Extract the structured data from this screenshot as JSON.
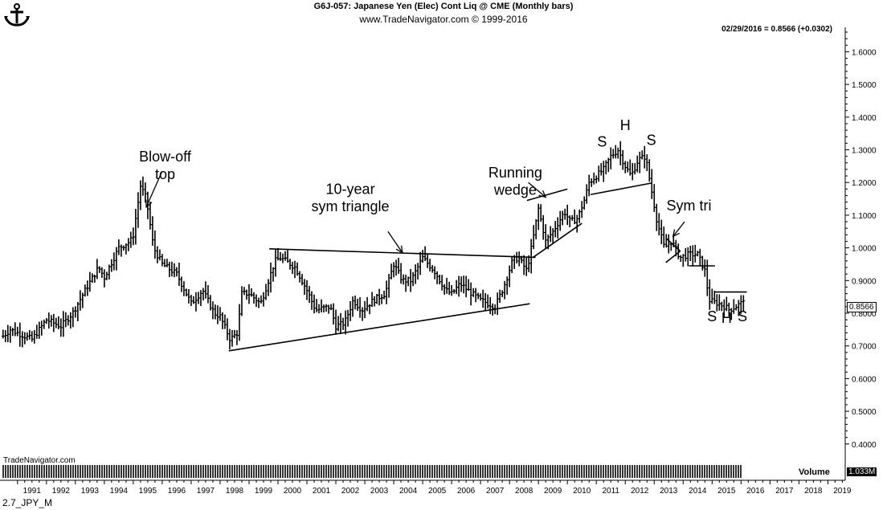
{
  "header": {
    "title": "G6J-057:  Japanese Yen (Elec) Cont Liq @ CME  (Monthly bars)",
    "subtitle": "www.TradeNavigator.com © 1999-2016",
    "last_quote": "02/29/2016 = 0.8566 (+0.0302)"
  },
  "footer": {
    "source": "TradeNavigator.com",
    "bottom_label": "2.7_JPY_M",
    "volume_label": "Volume",
    "volume_value": "1.033M",
    "last_price": "0.8566"
  },
  "logo_icon": "anchor-icon",
  "colors": {
    "bars": "#000000",
    "background": "#ffffff",
    "volume": "#000000"
  },
  "chart_data": {
    "type": "ohlc-bar",
    "title": "G6J-057:  Japanese Yen (Elec) Cont Liq @ CME  (Monthly bars)",
    "x_tick_labels": [
      "1991",
      "1992",
      "1993",
      "1994",
      "1995",
      "1996",
      "1997",
      "1998",
      "1999",
      "2000",
      "2001",
      "2002",
      "2003",
      "2004",
      "2005",
      "2006",
      "2007",
      "2008",
      "2009",
      "2010",
      "2011",
      "2012",
      "2013",
      "2014",
      "2015",
      "2016",
      "2017",
      "2018",
      "2019"
    ],
    "y_tick_labels": [
      "0.4000",
      "0.5000",
      "0.6000",
      "0.7000",
      "0.8000",
      "0.9000",
      "1.0000",
      "1.1000",
      "1.2000",
      "1.3000",
      "1.4000",
      "1.5000",
      "1.6000"
    ],
    "ylim": [
      0.37,
      1.66
    ],
    "xlim": [
      1990.45,
      2019.6
    ],
    "grid": false,
    "price_series": {
      "name": "",
      "anchors": [
        [
          1990.5,
          0.73
        ],
        [
          1990.75,
          0.75
        ],
        [
          1991.0,
          0.74
        ],
        [
          1991.5,
          0.72
        ],
        [
          1992.0,
          0.78
        ],
        [
          1992.5,
          0.76
        ],
        [
          1992.9,
          0.8
        ],
        [
          1993.4,
          0.88
        ],
        [
          1993.8,
          0.94
        ],
        [
          1994.0,
          0.91
        ],
        [
          1994.5,
          1.0
        ],
        [
          1994.9,
          1.02
        ],
        [
          1995.0,
          1.04
        ],
        [
          1995.25,
          1.19
        ],
        [
          1995.45,
          1.15
        ],
        [
          1995.7,
          1.0
        ],
        [
          1996.0,
          0.95
        ],
        [
          1996.5,
          0.92
        ],
        [
          1997.0,
          0.83
        ],
        [
          1997.4,
          0.87
        ],
        [
          1997.8,
          0.8
        ],
        [
          1998.0,
          0.79
        ],
        [
          1998.35,
          0.72
        ],
        [
          1998.6,
          0.74
        ],
        [
          1998.75,
          0.86
        ],
        [
          1999.0,
          0.86
        ],
        [
          1999.4,
          0.83
        ],
        [
          1999.9,
          0.96
        ],
        [
          2000.1,
          0.97
        ],
        [
          2000.6,
          0.94
        ],
        [
          2001.0,
          0.87
        ],
        [
          2001.3,
          0.81
        ],
        [
          2001.8,
          0.82
        ],
        [
          2002.0,
          0.76
        ],
        [
          2002.3,
          0.77
        ],
        [
          2002.6,
          0.84
        ],
        [
          2002.9,
          0.81
        ],
        [
          2003.3,
          0.84
        ],
        [
          2003.7,
          0.86
        ],
        [
          2004.0,
          0.95
        ],
        [
          2004.3,
          0.9
        ],
        [
          2004.6,
          0.9
        ],
        [
          2005.0,
          0.97
        ],
        [
          2005.4,
          0.93
        ],
        [
          2005.8,
          0.87
        ],
        [
          2006.0,
          0.86
        ],
        [
          2006.3,
          0.89
        ],
        [
          2006.7,
          0.86
        ],
        [
          2007.0,
          0.84
        ],
        [
          2007.5,
          0.82
        ],
        [
          2007.8,
          0.88
        ],
        [
          2008.1,
          0.96
        ],
        [
          2008.3,
          0.97
        ],
        [
          2008.6,
          0.93
        ],
        [
          2008.8,
          1.02
        ],
        [
          2009.0,
          1.12
        ],
        [
          2009.25,
          1.02
        ],
        [
          2009.5,
          1.05
        ],
        [
          2009.9,
          1.11
        ],
        [
          2010.1,
          1.08
        ],
        [
          2010.35,
          1.09
        ],
        [
          2010.6,
          1.15
        ],
        [
          2010.75,
          1.2
        ],
        [
          2011.0,
          1.22
        ],
        [
          2011.25,
          1.24
        ],
        [
          2011.5,
          1.28
        ],
        [
          2011.75,
          1.3
        ],
        [
          2012.0,
          1.25
        ],
        [
          2012.2,
          1.22
        ],
        [
          2012.45,
          1.27
        ],
        [
          2012.7,
          1.28
        ],
        [
          2012.9,
          1.18
        ],
        [
          2013.1,
          1.08
        ],
        [
          2013.35,
          1.0
        ],
        [
          2013.6,
          1.02
        ],
        [
          2013.9,
          0.97
        ],
        [
          2014.2,
          0.98
        ],
        [
          2014.5,
          0.98
        ],
        [
          2014.75,
          0.93
        ],
        [
          2014.9,
          0.84
        ],
        [
          2015.2,
          0.83
        ],
        [
          2015.45,
          0.82
        ],
        [
          2015.6,
          0.81
        ],
        [
          2015.8,
          0.82
        ],
        [
          2016.0,
          0.83
        ],
        [
          2016.15,
          0.8566
        ]
      ]
    },
    "trendlines": [
      {
        "name": "triangle-upper",
        "from": [
          1999.7,
          0.997
        ],
        "to": [
          2008.9,
          0.971
        ]
      },
      {
        "name": "triangle-lower",
        "from": [
          1998.3,
          0.685
        ],
        "to": [
          2008.7,
          0.829
        ]
      },
      {
        "name": "wedge-upper",
        "from": [
          2008.6,
          1.145
        ],
        "to": [
          2010.0,
          1.18
        ]
      },
      {
        "name": "wedge-lower",
        "from": [
          2008.8,
          0.97
        ],
        "to": [
          2010.5,
          1.075
        ]
      },
      {
        "name": "hs-neckline",
        "from": [
          2010.8,
          1.163
        ],
        "to": [
          2012.9,
          1.198
        ]
      },
      {
        "name": "symtri-upper",
        "from": [
          2013.4,
          1.03
        ],
        "to": [
          2013.9,
          0.99
        ]
      },
      {
        "name": "symtri-lower",
        "from": [
          2013.4,
          0.955
        ],
        "to": [
          2013.9,
          0.99
        ]
      },
      {
        "name": "breakdown-line",
        "from": [
          2014.2,
          0.945
        ],
        "to": [
          2015.1,
          0.945
        ]
      },
      {
        "name": "ihs-top",
        "from": [
          2015.1,
          0.865
        ],
        "to": [
          2016.2,
          0.865
        ]
      }
    ],
    "annotations": [
      {
        "text": "Blow-off",
        "x": 1996.1,
        "y": 1.265
      },
      {
        "text": "top",
        "x": 1996.1,
        "y": 1.21
      },
      {
        "text": "10-year",
        "x": 2002.5,
        "y": 1.165
      },
      {
        "text": "sym triangle",
        "x": 2002.5,
        "y": 1.112
      },
      {
        "text": "Running",
        "x": 2008.2,
        "y": 1.215
      },
      {
        "text": "wedge",
        "x": 2008.2,
        "y": 1.162
      },
      {
        "text": "S",
        "x": 2011.2,
        "y": 1.31
      },
      {
        "text": "H",
        "x": 2012.0,
        "y": 1.36
      },
      {
        "text": "S",
        "x": 2012.9,
        "y": 1.315
      },
      {
        "text": "Sym tri",
        "x": 2014.2,
        "y": 1.115
      },
      {
        "text": "S",
        "x": 2015.0,
        "y": 0.776
      },
      {
        "text": "H",
        "x": 2015.5,
        "y": 0.77
      },
      {
        "text": "S",
        "x": 2016.05,
        "y": 0.776
      }
    ],
    "arrows": [
      {
        "from": [
          1996.0,
          1.235
        ],
        "to": [
          1995.45,
          1.125
        ]
      },
      {
        "from": [
          2003.8,
          1.05
        ],
        "to": [
          2004.3,
          0.985
        ]
      },
      {
        "from": [
          2008.65,
          1.2
        ],
        "to": [
          2009.25,
          1.155
        ]
      },
      {
        "from": [
          2014.05,
          1.08
        ],
        "to": [
          2013.65,
          1.035
        ]
      }
    ]
  }
}
